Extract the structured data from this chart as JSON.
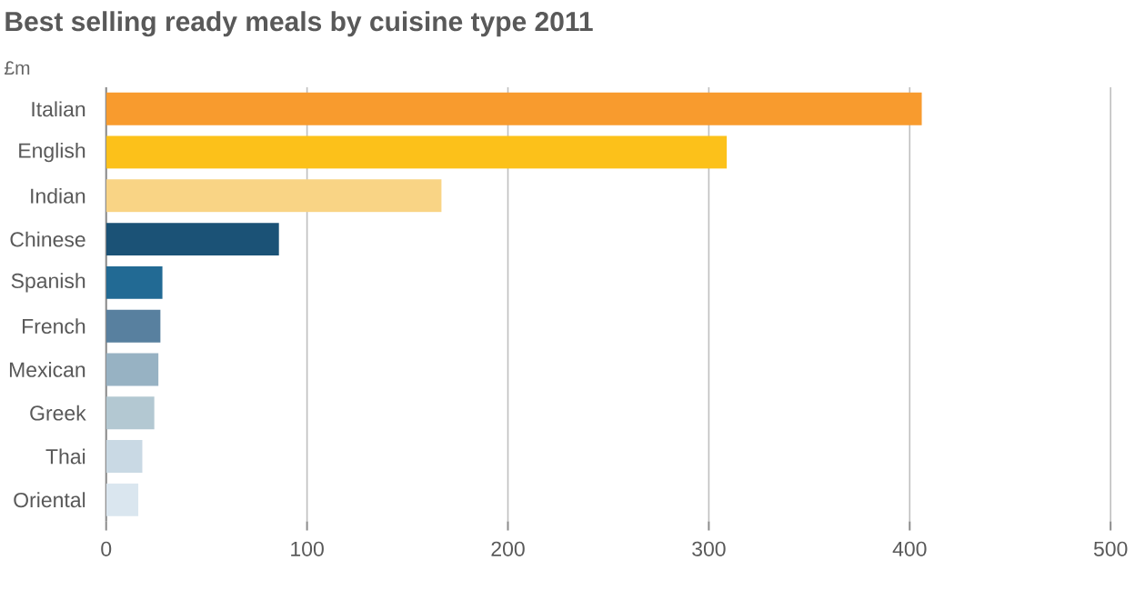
{
  "chart_data": {
    "type": "bar",
    "orientation": "horizontal",
    "title": "Best selling ready meals by cuisine type 2011",
    "ylabel": "£m",
    "categories": [
      "Italian",
      "English",
      "Indian",
      "Chinese",
      "Spanish",
      "French",
      "Mexican",
      "Greek",
      "Thai",
      "Oriental"
    ],
    "values": [
      406,
      309,
      167,
      86,
      28,
      27,
      26,
      24,
      18,
      16
    ],
    "colors": [
      "#f89b2e",
      "#fcc11a",
      "#f9d485",
      "#1b5276",
      "#226a94",
      "#58809f",
      "#97b2c3",
      "#b3c8d2",
      "#c9d9e4",
      "#dae6ef"
    ],
    "xlim": [
      0,
      500
    ],
    "xticks": [
      0,
      100,
      200,
      300,
      400,
      500
    ],
    "grid": "x"
  }
}
